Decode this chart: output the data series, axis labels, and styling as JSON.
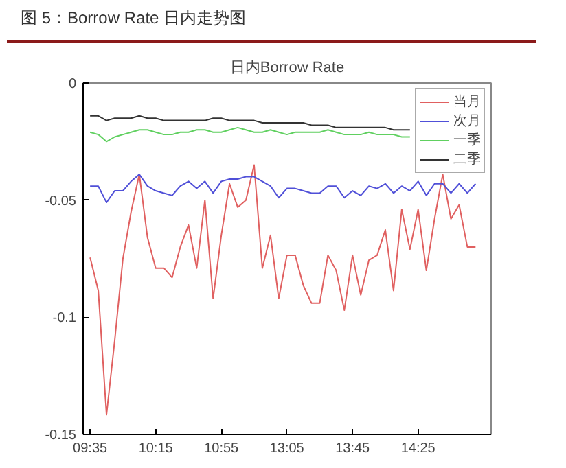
{
  "chart_data": {
    "type": "line",
    "title": "日内Borrow Rate",
    "subtitle": "图 5：Borrow Rate 日内走势图",
    "categories": [
      "09:35",
      null,
      null,
      null,
      null,
      null,
      null,
      null,
      "10:15",
      null,
      null,
      null,
      null,
      null,
      null,
      null,
      "10:55",
      null,
      null,
      null,
      null,
      null,
      null,
      null,
      "13:05",
      null,
      null,
      null,
      null,
      null,
      null,
      null,
      "13:45",
      null,
      null,
      null,
      null,
      null,
      null,
      null,
      "14:25",
      null,
      null,
      null,
      null,
      null,
      null,
      null
    ],
    "ylim": [
      -0.15,
      0
    ],
    "yticks": [
      -0.15,
      -0.1,
      -0.05,
      0
    ],
    "grid": false,
    "legend": "top right",
    "line_style": "solid",
    "series": [
      {
        "name": "当月",
        "color": "#e06060",
        "values": [
          -0.0745,
          -0.0886,
          -0.1416,
          -0.11,
          -0.075,
          -0.055,
          -0.039,
          -0.066,
          -0.079,
          -0.079,
          -0.083,
          -0.07,
          -0.0606,
          -0.079,
          -0.05,
          -0.092,
          -0.065,
          -0.043,
          -0.053,
          -0.05,
          -0.035,
          -0.079,
          -0.065,
          -0.092,
          -0.0735,
          -0.0735,
          -0.0864,
          -0.094,
          -0.094,
          -0.0735,
          -0.08,
          -0.097,
          -0.0735,
          -0.0905,
          -0.0756,
          -0.0735,
          -0.0627,
          -0.0886,
          -0.054,
          -0.071,
          -0.054,
          -0.08,
          -0.058,
          -0.039,
          -0.058,
          -0.052,
          -0.07,
          -0.07
        ]
      },
      {
        "name": "次月",
        "color": "#5050d8",
        "values": [
          -0.044,
          -0.044,
          -0.051,
          -0.046,
          -0.046,
          -0.042,
          -0.039,
          -0.044,
          -0.046,
          -0.047,
          -0.048,
          -0.044,
          -0.042,
          -0.045,
          -0.042,
          -0.047,
          -0.042,
          -0.041,
          -0.041,
          -0.04,
          -0.04,
          -0.042,
          -0.044,
          -0.049,
          -0.045,
          -0.045,
          -0.046,
          -0.047,
          -0.047,
          -0.044,
          -0.044,
          -0.049,
          -0.046,
          -0.048,
          -0.044,
          -0.045,
          -0.043,
          -0.047,
          -0.044,
          -0.046,
          -0.042,
          -0.048,
          -0.043,
          -0.043,
          -0.047,
          -0.043,
          -0.047,
          -0.043
        ]
      },
      {
        "name": "一季",
        "color": "#60d060",
        "values": [
          -0.021,
          -0.022,
          -0.025,
          -0.023,
          -0.022,
          -0.021,
          -0.02,
          -0.02,
          -0.021,
          -0.022,
          -0.022,
          -0.021,
          -0.021,
          -0.02,
          -0.02,
          -0.021,
          -0.021,
          -0.02,
          -0.019,
          -0.02,
          -0.021,
          -0.021,
          -0.02,
          -0.021,
          -0.022,
          -0.021,
          -0.021,
          -0.021,
          -0.021,
          -0.02,
          -0.021,
          -0.022,
          -0.022,
          -0.022,
          -0.021,
          -0.022,
          -0.022,
          -0.022,
          -0.023,
          -0.023,
          null,
          null,
          null,
          null,
          null,
          null,
          null,
          null
        ]
      },
      {
        "name": "二季",
        "color": "#333333",
        "values": [
          -0.014,
          -0.014,
          -0.016,
          -0.015,
          -0.015,
          -0.015,
          -0.014,
          -0.015,
          -0.015,
          -0.016,
          -0.016,
          -0.016,
          -0.016,
          -0.016,
          -0.016,
          -0.015,
          -0.015,
          -0.016,
          -0.016,
          -0.016,
          -0.016,
          -0.017,
          -0.017,
          -0.017,
          -0.017,
          -0.017,
          -0.017,
          -0.018,
          -0.018,
          -0.018,
          -0.019,
          -0.019,
          -0.019,
          -0.019,
          -0.019,
          -0.019,
          -0.019,
          -0.02,
          -0.02,
          -0.02,
          null,
          null,
          null,
          null,
          null,
          null,
          null,
          null
        ]
      }
    ]
  }
}
